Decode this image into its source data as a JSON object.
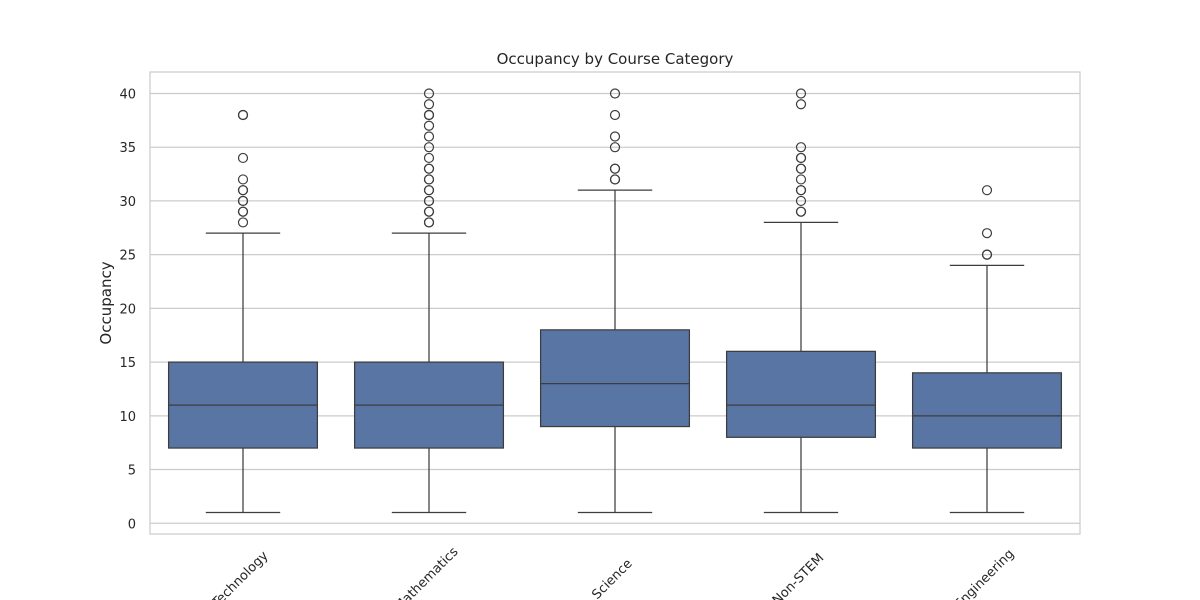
{
  "chart_data": {
    "type": "box",
    "title": "Occupancy by Course Category",
    "xlabel": "",
    "ylabel": "Occupancy",
    "ylim": [
      -1,
      42
    ],
    "yticks": [
      0,
      5,
      10,
      15,
      20,
      25,
      30,
      35,
      40
    ],
    "grid": "y",
    "box_color": "#5875a4",
    "line_color": "#3d3d3d",
    "grid_color": "#cccccc",
    "categories": [
      "Technology",
      "Mathematics",
      "Science",
      "Non-STEM",
      "Engineering"
    ],
    "boxes": [
      {
        "category": "Technology",
        "whisker_low": 1,
        "q1": 7,
        "median": 11,
        "q3": 15,
        "whisker_high": 27,
        "outliers": [
          28,
          29,
          29,
          30,
          30,
          31,
          31,
          32,
          34,
          38,
          38
        ]
      },
      {
        "category": "Mathematics",
        "whisker_low": 1,
        "q1": 7,
        "median": 11,
        "q3": 15,
        "whisker_high": 27,
        "outliers": [
          28,
          28,
          29,
          29,
          30,
          30,
          31,
          31,
          32,
          32,
          33,
          33,
          34,
          35,
          36,
          37,
          38,
          38,
          39,
          40
        ]
      },
      {
        "category": "Science",
        "whisker_low": 1,
        "q1": 9,
        "median": 13,
        "q3": 18,
        "whisker_high": 31,
        "outliers": [
          32,
          32,
          33,
          33,
          35,
          36,
          38,
          40
        ]
      },
      {
        "category": "Non-STEM",
        "whisker_low": 1,
        "q1": 8,
        "median": 11,
        "q3": 16,
        "whisker_high": 28,
        "outliers": [
          29,
          29,
          30,
          31,
          31,
          32,
          33,
          33,
          34,
          34,
          35,
          39,
          40
        ]
      },
      {
        "category": "Engineering",
        "whisker_low": 1,
        "q1": 7,
        "median": 10,
        "q3": 14,
        "whisker_high": 24,
        "outliers": [
          25,
          25,
          27,
          31
        ]
      }
    ]
  }
}
